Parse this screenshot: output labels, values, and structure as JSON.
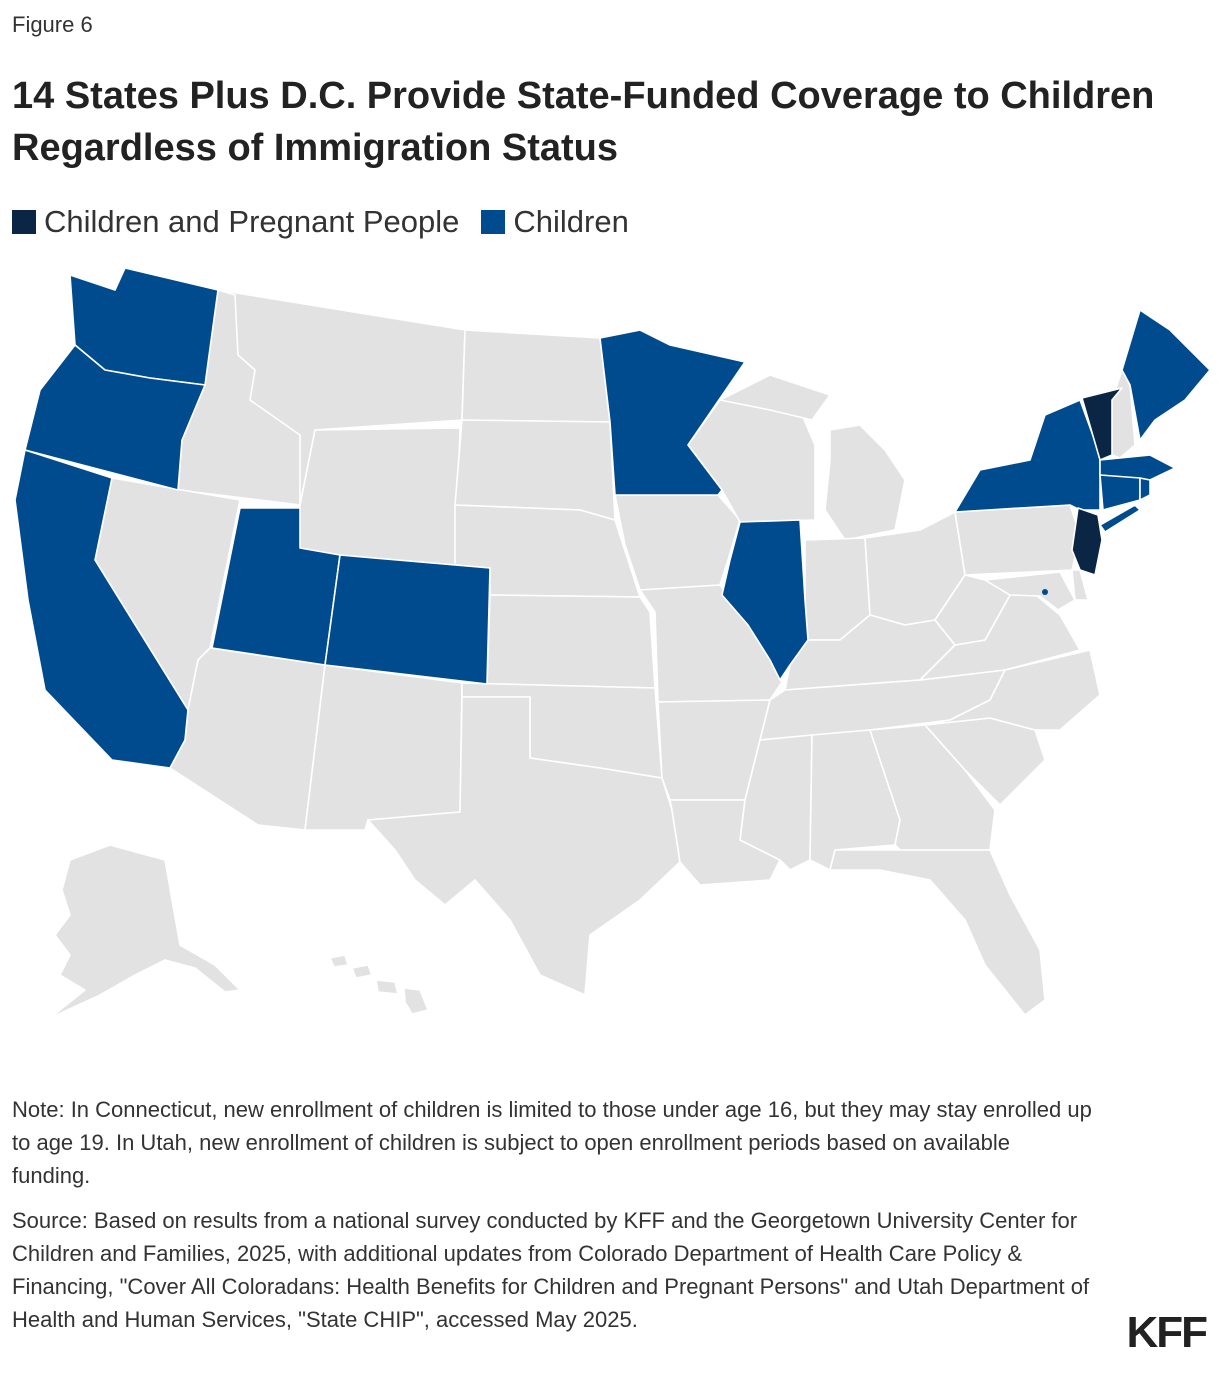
{
  "figure_label": "Figure 6",
  "title": "14 States Plus D.C. Provide State-Funded Coverage to Children Regardless of Immigration Status",
  "legend": [
    {
      "label": "Children and Pregnant People",
      "color": "#0b2545"
    },
    {
      "label": "Children",
      "color": "#004b8d"
    }
  ],
  "colors": {
    "base": "#e2e2e2",
    "children": "#004b8d",
    "children_and_pregnant": "#0b2545",
    "border": "#ffffff"
  },
  "map_data": {
    "children_and_pregnant_people": [
      "Vermont",
      "New Jersey"
    ],
    "children": [
      "Washington",
      "Oregon",
      "California",
      "Utah",
      "Colorado",
      "Minnesota",
      "Illinois",
      "New York",
      "Maine",
      "Massachusetts",
      "Connecticut",
      "Rhode Island",
      "District of Columbia"
    ]
  },
  "note": "Note: In Connecticut, new enrollment of children is limited to those under age 16, but they may stay enrolled up to age 19. In Utah, new enrollment of children is subject to open enrollment periods based on available funding.",
  "source": "Source: Based on results from a national survey conducted by KFF and the Georgetown University Center for Children and Families, 2025, with additional updates from Colorado Department of Health Care Policy & Financing, \"Cover All Coloradans: Health Benefits for Children and Pregnant Persons\" and Utah Department of Health and Human Services, \"State CHIP\", accessed May 2025.",
  "logo": "KFF"
}
